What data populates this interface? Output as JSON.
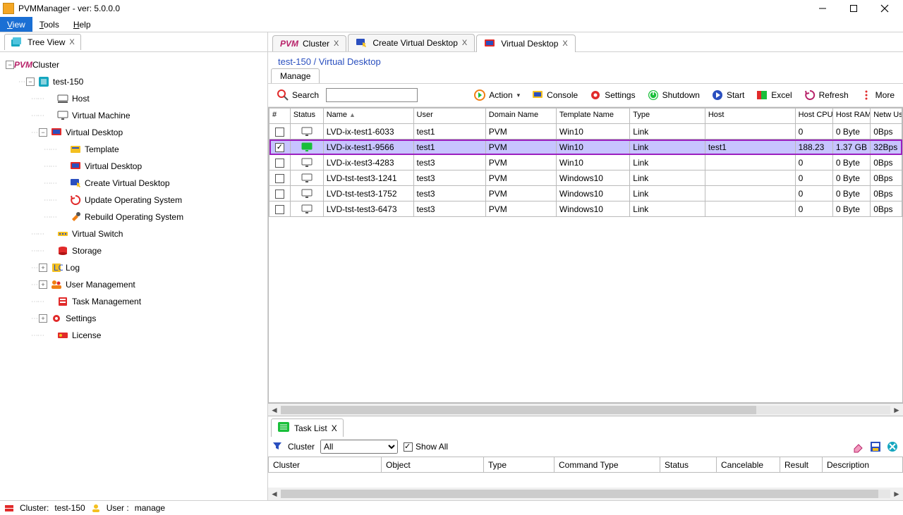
{
  "window": {
    "title": "PVMManager - ver: 5.0.0.0"
  },
  "menu": {
    "view": "View",
    "tools": "Tools",
    "help": "Help"
  },
  "treeTab": {
    "label": "Tree View"
  },
  "tree": {
    "root": "Cluster",
    "host": "test-150",
    "items": {
      "host_node": "Host",
      "vm": "Virtual Machine",
      "vdesk": "Virtual Desktop",
      "template": "Template",
      "vdesk2": "Virtual Desktop",
      "create_vdesk": "Create Virtual Desktop",
      "update_os": "Update Operating System",
      "rebuild_os": "Rebuild Operating System",
      "vswitch": "Virtual Switch",
      "storage": "Storage",
      "log": "Log",
      "usermgmt": "User Management",
      "taskmgmt": "Task Management",
      "settings": "Settings",
      "license": "License"
    }
  },
  "tabs": {
    "cluster": "Cluster",
    "create_vd": "Create Virtual Desktop",
    "vd": "Virtual Desktop"
  },
  "breadcrumb": "test-150 / Virtual Desktop",
  "subtab": "Manage",
  "toolbar": {
    "search": "Search",
    "action": "Action",
    "console": "Console",
    "settings": "Settings",
    "shutdown": "Shutdown",
    "start": "Start",
    "excel": "Excel",
    "refresh": "Refresh",
    "more": "More"
  },
  "grid": {
    "headers": {
      "num": "#",
      "status": "Status",
      "name": "Name",
      "user": "User",
      "domain": "Domain Name",
      "template": "Template Name",
      "type": "Type",
      "host": "Host",
      "cpu": "Host CPU Usage",
      "ram": "Host RAM Usage",
      "net": "Netw Usag"
    },
    "rows": [
      {
        "checked": false,
        "running": false,
        "name": "LVD-ix-test1-6033",
        "user": "test1",
        "domain": "PVM",
        "template": "Win10",
        "type": "Link",
        "host": "",
        "cpu": "0",
        "ram": "0 Byte",
        "net": "0Bps"
      },
      {
        "checked": true,
        "running": true,
        "name": "LVD-ix-test1-9566",
        "user": "test1",
        "domain": "PVM",
        "template": "Win10",
        "type": "Link",
        "host": "test1",
        "cpu": "188.23",
        "ram": "1.37 GB",
        "net": "32Bps",
        "selected": true
      },
      {
        "checked": false,
        "running": false,
        "name": "LVD-ix-test3-4283",
        "user": "test3",
        "domain": "PVM",
        "template": "Win10",
        "type": "Link",
        "host": "",
        "cpu": "0",
        "ram": "0 Byte",
        "net": "0Bps"
      },
      {
        "checked": false,
        "running": false,
        "name": "LVD-tst-test3-1241",
        "user": "test3",
        "domain": "PVM",
        "template": "Windows10",
        "type": "Link",
        "host": "",
        "cpu": "0",
        "ram": "0 Byte",
        "net": "0Bps"
      },
      {
        "checked": false,
        "running": false,
        "name": "LVD-tst-test3-1752",
        "user": "test3",
        "domain": "PVM",
        "template": "Windows10",
        "type": "Link",
        "host": "",
        "cpu": "0",
        "ram": "0 Byte",
        "net": "0Bps"
      },
      {
        "checked": false,
        "running": false,
        "name": "LVD-tst-test3-6473",
        "user": "test3",
        "domain": "PVM",
        "template": "Windows10",
        "type": "Link",
        "host": "",
        "cpu": "0",
        "ram": "0 Byte",
        "net": "0Bps"
      }
    ]
  },
  "tasklist": {
    "tab": "Task List",
    "filter_label": "Cluster",
    "filter_value": "All",
    "show_all": "Show All",
    "headers": {
      "cluster": "Cluster",
      "object": "Object",
      "type": "Type",
      "cmdtype": "Command Type",
      "status": "Status",
      "cancelable": "Cancelable",
      "result": "Result",
      "desc": "Description"
    }
  },
  "status": {
    "cluster_label": "Cluster:",
    "cluster": "test-150",
    "user_label": "User :",
    "user": "manage"
  },
  "colors": {
    "accent": "#1a6fd4",
    "sel_row": "#c7c4ff",
    "frame": "#9c1fbf",
    "pvm": "#b8236a",
    "orange": "#f07f13",
    "green": "#19bf3a",
    "teal": "#15a6bf",
    "navy": "#2a4fbf",
    "red": "#e12a2a",
    "yellow": "#f4c020"
  }
}
